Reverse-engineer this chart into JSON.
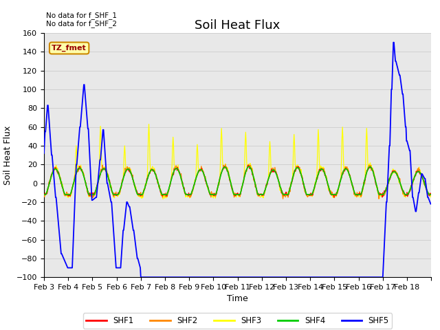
{
  "title": "Soil Heat Flux",
  "xlabel": "Time",
  "ylabel": "Soil Heat Flux",
  "ylim": [
    -100,
    160
  ],
  "yticks": [
    -100,
    -80,
    -60,
    -40,
    -20,
    0,
    20,
    40,
    60,
    80,
    100,
    120,
    140,
    160
  ],
  "x_tick_labels": [
    "Feb 3",
    "Feb 4",
    "Feb 5",
    "Feb 6",
    "Feb 7",
    "Feb 8",
    "Feb 9",
    "Feb 10",
    "Feb 11",
    "Feb 12",
    "Feb 13",
    "Feb 14",
    "Feb 15",
    "Feb 16",
    "Feb 17",
    "Feb 18"
  ],
  "annotations": [
    "No data for f_SHF_1",
    "No data for f_SHF_2"
  ],
  "tz_label": "TZ_fmet",
  "legend_entries": [
    "SHF1",
    "SHF2",
    "SHF3",
    "SHF4",
    "SHF5"
  ],
  "legend_colors": [
    "#ff0000",
    "#ff8800",
    "#ffff00",
    "#00cc00",
    "#0000ff"
  ],
  "background_color": "#ffffff",
  "grid_color": "#d0d0d0",
  "title_fontsize": 13,
  "axis_fontsize": 9,
  "tick_fontsize": 8
}
